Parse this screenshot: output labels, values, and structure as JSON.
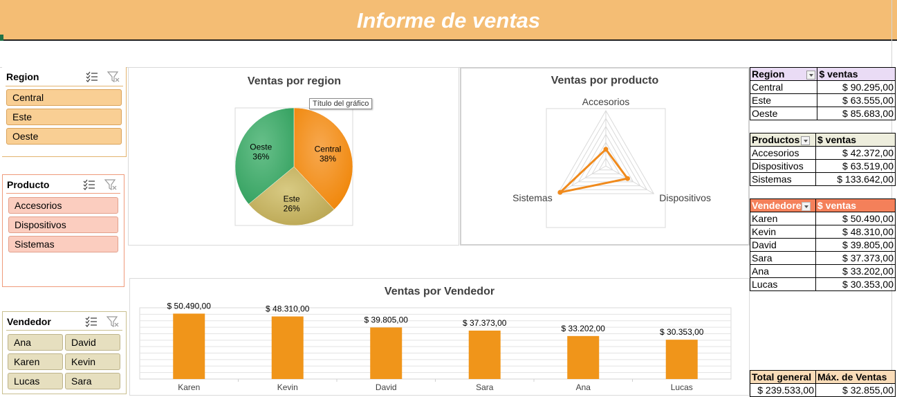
{
  "title": "Informe de ventas",
  "slicers": {
    "region": {
      "header": "Region",
      "items": [
        "Central",
        "Este",
        "Oeste"
      ]
    },
    "producto": {
      "header": "Producto",
      "items": [
        "Accesorios",
        "Dispositivos",
        "Sistemas"
      ]
    },
    "vendedor": {
      "header": "Vendedor",
      "items": [
        "Ana",
        "David",
        "Karen",
        "Kevin",
        "Lucas",
        "Sara"
      ]
    },
    "icons": {
      "multiselect": "multi-select-icon",
      "clear_filter": "clear-filter-icon"
    }
  },
  "tooltip": "Título del gráfico",
  "chart_data": [
    {
      "type": "pie",
      "title": "Ventas por region",
      "categories": [
        "Central",
        "Este",
        "Oeste"
      ],
      "values": [
        38,
        26,
        36
      ],
      "labels": [
        "38%",
        "26%",
        "36%"
      ],
      "colors": [
        "#f08a1c",
        "#c3b063",
        "#3fae6a"
      ]
    },
    {
      "type": "radar",
      "title": "Ventas por producto",
      "categories": [
        "Accesorios",
        "Dispositivos",
        "Sistemas"
      ],
      "values": [
        42372,
        63519,
        133642
      ],
      "rmax": 140000,
      "color": "#f08a1c"
    },
    {
      "type": "bar",
      "title": "Ventas por Vendedor",
      "categories": [
        "Karen",
        "Kevin",
        "David",
        "Sara",
        "Ana",
        "Lucas"
      ],
      "values": [
        50490,
        48310,
        39805,
        37373,
        33202,
        30353
      ],
      "data_labels": [
        "$ 50.490,00",
        "$ 48.310,00",
        "$ 39.805,00",
        "$ 37.373,00",
        "$ 33.202,00",
        "$ 30.353,00"
      ],
      "ylim": [
        0,
        55000
      ],
      "color": "#f0951a"
    }
  ],
  "pivots": {
    "region": {
      "headers": [
        "Region",
        "$ ventas"
      ],
      "rows": [
        [
          "Central",
          "$ 90.295,00"
        ],
        [
          "Este",
          "$ 63.555,00"
        ],
        [
          "Oeste",
          "$ 85.683,00"
        ]
      ]
    },
    "productos": {
      "headers": [
        "Productos",
        "$ ventas"
      ],
      "rows": [
        [
          "Accesorios",
          "$ 42.372,00"
        ],
        [
          "Dispositivos",
          "$ 63.519,00"
        ],
        [
          "Sistemas",
          "$ 133.642,00"
        ]
      ]
    },
    "vendedores": {
      "headers": [
        "Vendedore",
        "$ ventas"
      ],
      "rows": [
        [
          "Karen",
          "$ 50.490,00"
        ],
        [
          "Kevin",
          "$ 48.310,00"
        ],
        [
          "David",
          "$ 39.805,00"
        ],
        [
          "Sara",
          "$ 37.373,00"
        ],
        [
          "Ana",
          "$ 33.202,00"
        ],
        [
          "Lucas",
          "$ 30.353,00"
        ]
      ]
    },
    "totals": {
      "headers": [
        "Total general",
        "Máx. de Ventas"
      ],
      "values": [
        "$ 239.533,00",
        "$ 32.855,00"
      ]
    }
  },
  "colors": {
    "banner": "#f4bd74",
    "region_slicer_btn": "#f9cf94",
    "producto_slicer_btn": "#fbcdbf",
    "vendedor_slicer_btn": "#e6dfbf",
    "region_header": "#eadcf5",
    "productos_header": "#eeeedd",
    "vendedores_header": "#f4805a"
  }
}
